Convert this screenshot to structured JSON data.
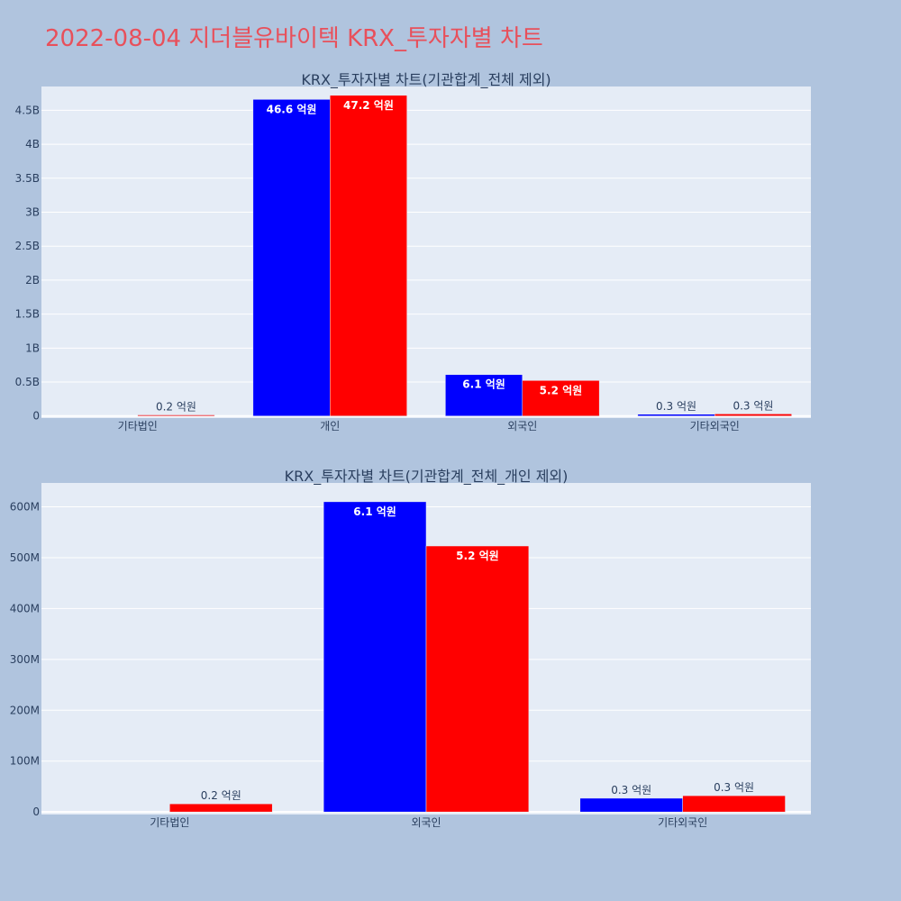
{
  "title": "2022-08-04 지더블유바이텍 KRX_투자자별 차트",
  "colors": {
    "title": "#e8505b",
    "background": "#b0c4de",
    "plot_background": "#e5ecf6",
    "series_a": "#0000ff",
    "series_b": "#ff0000"
  },
  "chart_data": [
    {
      "type": "bar",
      "title": "KRX_투자자별 차트(기관합계_전체 제외)",
      "categories": [
        "기타법인",
        "개인",
        "외국인",
        "기타외국인"
      ],
      "series": [
        {
          "color": "#0000ff",
          "values": [
            0,
            4660000000,
            610000000,
            26000000
          ],
          "labels": [
            "",
            "46.6 억원",
            "6.1 억원",
            "0.3 억원"
          ]
        },
        {
          "color": "#ff0000",
          "values": [
            16000000,
            4720000000,
            523000000,
            31000000
          ],
          "labels": [
            "0.2 억원",
            "47.2 억원",
            "5.2 억원",
            "0.3 억원"
          ]
        }
      ],
      "yticks": [
        0,
        500000000,
        1000000000,
        1500000000,
        2000000000,
        2500000000,
        3000000000,
        3500000000,
        4000000000,
        4500000000
      ],
      "ytick_labels": [
        "0",
        "0.5B",
        "1B",
        "1.5B",
        "2B",
        "2.5B",
        "3B",
        "3.5B",
        "4B",
        "4.5B"
      ],
      "ylim": [
        -30000000,
        4850000000
      ],
      "grid": true,
      "legend": false
    },
    {
      "type": "bar",
      "title": "KRX_투자자별 차트(기관합계_전체_개인 제외)",
      "categories": [
        "기타법인",
        "외국인",
        "기타외국인"
      ],
      "series": [
        {
          "color": "#0000ff",
          "values": [
            0,
            610000000,
            27000000
          ],
          "labels": [
            "",
            "6.1 억원",
            "0.3 억원"
          ]
        },
        {
          "color": "#ff0000",
          "values": [
            16000000,
            523000000,
            32000000
          ],
          "labels": [
            "0.2 억원",
            "5.2 억원",
            "0.3 억원"
          ]
        }
      ],
      "yticks": [
        0,
        100000000,
        200000000,
        300000000,
        400000000,
        500000000,
        600000000
      ],
      "ytick_labels": [
        "0",
        "100M",
        "200M",
        "300M",
        "400M",
        "500M",
        "600M"
      ],
      "ylim": [
        -5000000,
        647000000
      ],
      "grid": true,
      "legend": false
    }
  ]
}
